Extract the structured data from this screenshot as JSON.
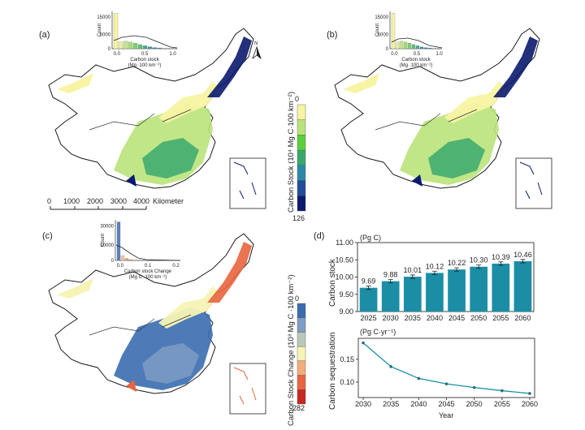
{
  "panels": {
    "a": {
      "label": "(a)",
      "north": "N",
      "hist": {
        "ylabel": "Count",
        "yticks": [
          "15000",
          "5000",
          "0"
        ],
        "xticks": [
          "0.0",
          "0.5",
          "1.0"
        ],
        "xlabel1": "Carbon stock",
        "xlabel2": "(Mg ·100 km⁻²)"
      },
      "scalebar": {
        "ticks": [
          "0",
          "1000",
          "2000",
          "3000",
          "4000"
        ],
        "unit": "Kilometer"
      }
    },
    "b": {
      "label": "(b)",
      "hist": {
        "ylabel": "Count",
        "yticks": [
          "15000",
          "5000",
          "0"
        ],
        "xticks": [
          "0.0",
          "0.5",
          "1.0"
        ],
        "xlabel1": "Carbon stock",
        "xlabel2": "(Mg ·100 km⁻²)"
      }
    },
    "c": {
      "label": "(c)",
      "hist": {
        "ylabel": "Count",
        "yticks": [
          "30000",
          "10000",
          "0"
        ],
        "xticks": [
          "0.0",
          "0.1",
          "0.2"
        ],
        "xlabel1": "Carbon stock Change",
        "xlabel2": "(Mg C ·100 km⁻²)"
      }
    },
    "d": {
      "label": "(d)"
    }
  },
  "legends": {
    "stock": {
      "title": "Carbon Stock (10⁴ Mg C·100 km⁻²)",
      "min": "0",
      "max": "126",
      "colors": [
        "#f7f4a3",
        "#b9e37a",
        "#5ccf3c",
        "#3aa86e",
        "#2a8aa6",
        "#1f4e9a",
        "#0b1a6e"
      ]
    },
    "change": {
      "title": "Carbon Stock Change (10³ Mg C ·100 km⁻²)",
      "min": "0",
      "max": "282",
      "colors": [
        "#3a6db0",
        "#7f9cc4",
        "#b9c8b8",
        "#f6f3b5",
        "#f3ad7a",
        "#e8653f",
        "#c8281f"
      ]
    }
  },
  "chart_data": [
    {
      "type": "bar",
      "title": "(Pg C)",
      "ylabel": "Carbon stock",
      "categories": [
        "2025",
        "2030",
        "2035",
        "2040",
        "2045",
        "2050",
        "2055",
        "2060"
      ],
      "values": [
        9.69,
        9.88,
        10.01,
        10.12,
        10.22,
        10.3,
        10.39,
        10.46
      ],
      "labels": [
        "9.69",
        "9.88",
        "10.01",
        "10.12",
        "10.22",
        "10.30",
        "10.39",
        "10.46"
      ],
      "error": [
        0.05,
        0.05,
        0.05,
        0.05,
        0.05,
        0.05,
        0.05,
        0.05
      ],
      "ylim": [
        9.0,
        11.0
      ],
      "yticks": [
        "9.00",
        "9.50",
        "10.00",
        "10.50",
        "11.00"
      ],
      "color": "#1b8ea6"
    },
    {
      "type": "line",
      "title": "(Pg C·yr⁻¹)",
      "ylabel": "Carbon sequestration",
      "xlabel": "Year",
      "x": [
        "2030",
        "2035",
        "2040",
        "2045",
        "2050",
        "2055",
        "2060"
      ],
      "values": [
        0.186,
        0.134,
        0.108,
        0.096,
        0.088,
        0.081,
        0.075
      ],
      "ylim": [
        0.066,
        0.196
      ],
      "yticks": [
        "0.10",
        "0.15"
      ],
      "color": "#1b8ea6"
    }
  ]
}
